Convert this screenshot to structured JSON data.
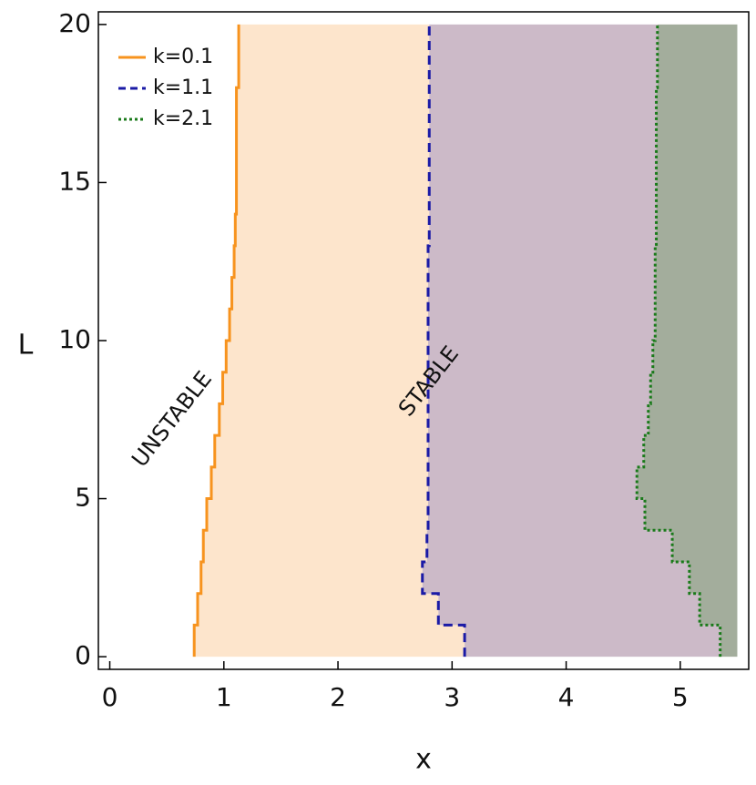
{
  "chart_data": {
    "type": "step",
    "xlabel": "x",
    "ylabel": "L",
    "L": [
      0,
      1,
      2,
      3,
      4,
      5,
      6,
      7,
      8,
      9,
      10,
      11,
      12,
      13,
      14,
      15,
      16,
      17,
      18,
      19,
      20
    ],
    "series": [
      {
        "name": "k=0.1",
        "color": "#f7931e",
        "dash": "solid",
        "fill": "#fde5cc",
        "values": [
          0.74,
          0.77,
          0.8,
          0.82,
          0.85,
          0.89,
          0.92,
          0.96,
          0.99,
          1.02,
          1.05,
          1.07,
          1.09,
          1.1,
          1.11,
          1.11,
          1.11,
          1.11,
          1.13,
          1.13,
          1.13
        ]
      },
      {
        "name": "k=1.1",
        "color": "#1a1aa6",
        "dash": "dashed",
        "fill": "#ccbac8",
        "values": [
          3.11,
          2.88,
          2.74,
          2.78,
          2.79,
          2.79,
          2.79,
          2.79,
          2.79,
          2.79,
          2.79,
          2.79,
          2.79,
          2.8,
          2.8,
          2.8,
          2.8,
          2.8,
          2.8,
          2.8,
          2.8
        ]
      },
      {
        "name": "k=2.1",
        "color": "#1a7a1a",
        "dash": "dotted",
        "fill": "#a3ad9c",
        "values": [
          5.35,
          5.17,
          5.08,
          4.93,
          4.69,
          4.62,
          4.68,
          4.72,
          4.74,
          4.76,
          4.78,
          4.78,
          4.78,
          4.79,
          4.79,
          4.79,
          4.79,
          4.79,
          4.8,
          4.8,
          4.8
        ]
      }
    ],
    "shade_xmax": 5.5,
    "annotations": [
      {
        "text": "UNSTABLE",
        "x": 0.55,
        "y": 7.5
      },
      {
        "text": "STABLE",
        "x": 2.8,
        "y": 8.7
      }
    ],
    "xlim": [
      -0.1,
      5.6
    ],
    "ylim": [
      -0.4,
      20.4
    ],
    "xticks": [
      0,
      1,
      2,
      3,
      4,
      5
    ],
    "yticks": [
      0,
      5,
      10,
      15,
      20
    ],
    "legend": "upper left"
  }
}
